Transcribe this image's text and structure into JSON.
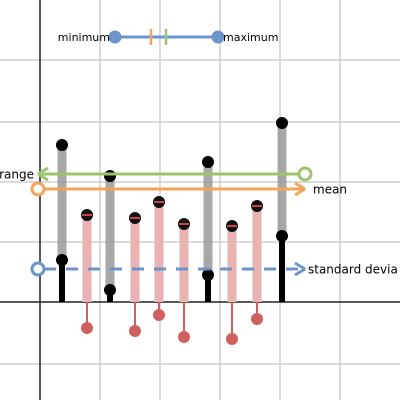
{
  "slider": {
    "left_label": "minimum",
    "right_label": "maximum"
  },
  "lines": {
    "range": "range",
    "mean": "mean",
    "standard_deviation": "standard devia"
  }
}
